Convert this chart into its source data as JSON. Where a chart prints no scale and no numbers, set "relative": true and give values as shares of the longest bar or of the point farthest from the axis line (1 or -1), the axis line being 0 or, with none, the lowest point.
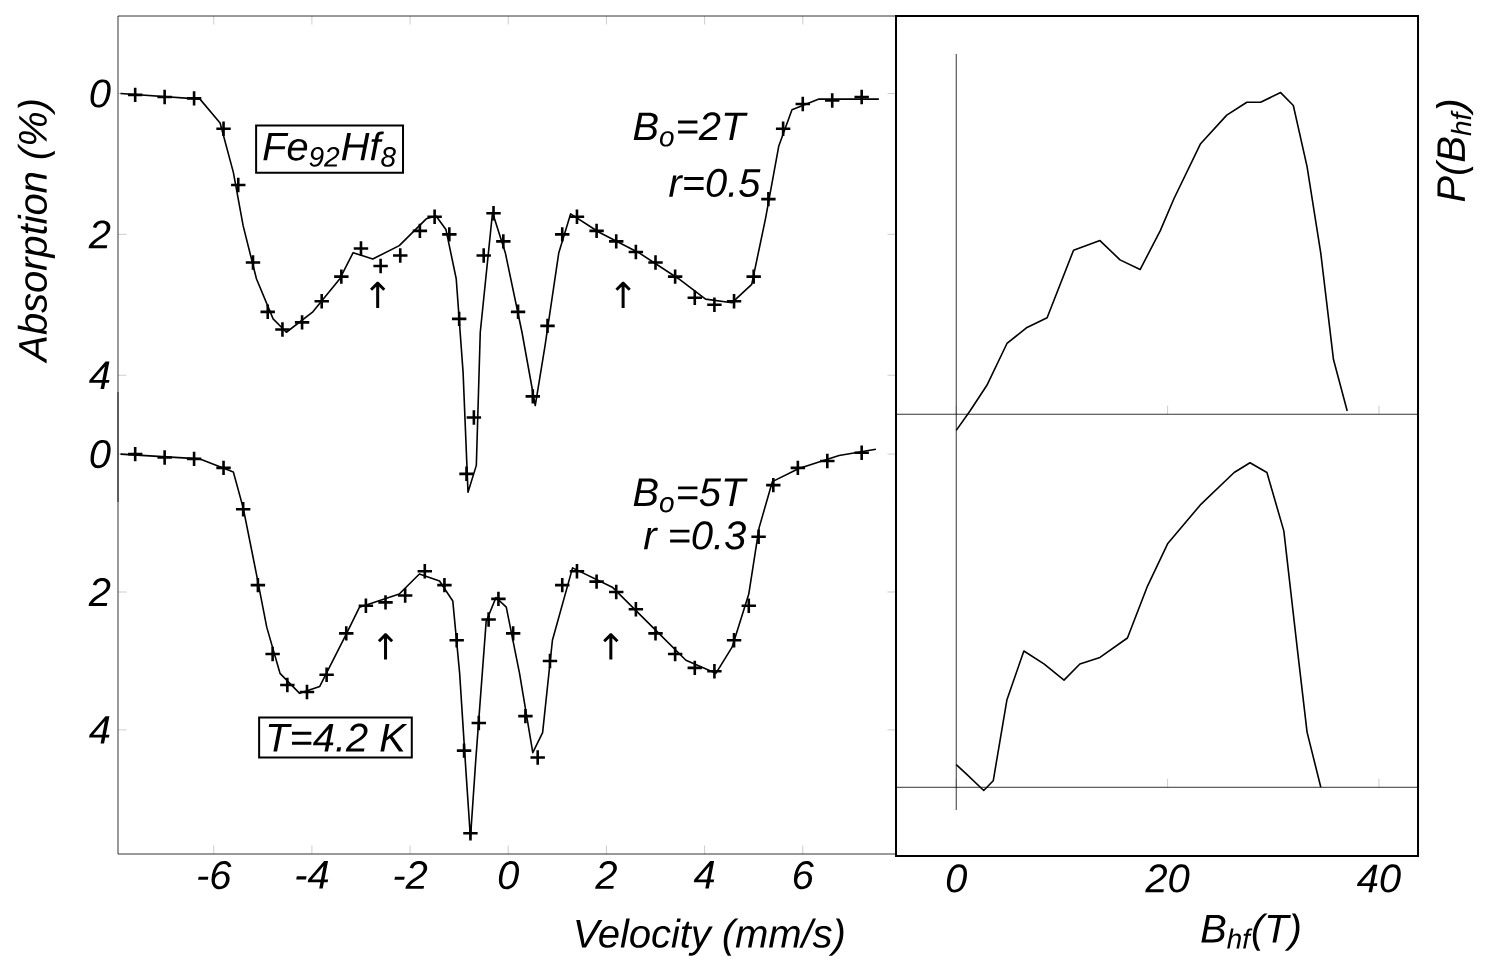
{
  "chart_data": [
    {
      "type": "line",
      "ylabel": "Absorption (%)",
      "xlim": [
        -7.95,
        7.9
      ],
      "xticks": [
        -6,
        -4,
        -2,
        0,
        2,
        4,
        6
      ],
      "ylim": [
        5.8,
        -1.1
      ],
      "yticks": [
        0,
        2,
        4
      ],
      "tick_labels": "y",
      "annotations": [
        "Fe$_{92}$Hf$_{8}$",
        "B$_{o}$=2T",
        "r=0.5",
        "↑",
        "↑"
      ],
      "series": [
        {
          "type": "scatter",
          "marker": "cross",
          "color": "#000000",
          "x": [
            -7.6,
            -7.0,
            -6.4,
            -5.8,
            -5.5,
            -5.2,
            -4.9,
            -4.6,
            -4.2,
            -3.8,
            -3.4,
            -3.0,
            -2.6,
            -2.2,
            -1.8,
            -1.5,
            -1.2,
            -1.0,
            -0.85,
            -0.7,
            -0.5,
            -0.3,
            -0.1,
            0.2,
            0.5,
            0.8,
            1.1,
            1.4,
            1.8,
            2.2,
            2.6,
            3.0,
            3.4,
            3.8,
            4.2,
            4.6,
            5.0,
            5.3,
            5.6,
            6.0,
            6.6,
            7.2
          ],
          "values": [
            0.02,
            0.05,
            0.07,
            0.5,
            1.3,
            2.4,
            3.1,
            3.35,
            3.25,
            2.95,
            2.6,
            2.2,
            2.45,
            2.3,
            1.95,
            1.75,
            2.0,
            3.2,
            5.4,
            4.6,
            2.3,
            1.7,
            2.1,
            3.1,
            4.3,
            3.3,
            2.0,
            1.75,
            1.95,
            2.1,
            2.25,
            2.4,
            2.6,
            2.9,
            3.0,
            2.95,
            2.6,
            1.5,
            0.5,
            0.15,
            0.1,
            0.05
          ]
        },
        {
          "type": "line",
          "color": "#000000",
          "x": [
            -7.9,
            -6.28,
            -5.87,
            -5.6,
            -5.4,
            -5.13,
            -4.79,
            -4.52,
            -3.98,
            -3.43,
            -3.16,
            -2.76,
            -2.22,
            -1.67,
            -1.47,
            -1.27,
            -1.06,
            -0.92,
            -0.82,
            -0.65,
            -0.57,
            -0.32,
            -0.06,
            0.28,
            0.55,
            0.75,
            1.03,
            1.27,
            1.85,
            2.66,
            3.47,
            4.02,
            4.56,
            4.96,
            5.24,
            5.51,
            5.78,
            6.33,
            7.55
          ],
          "values": [
            0,
            0.08,
            0.42,
            1.12,
            1.88,
            2.63,
            3.2,
            3.39,
            3.1,
            2.63,
            2.26,
            2.35,
            2.16,
            1.78,
            1.74,
            1.93,
            2.63,
            3.96,
            5.66,
            5.28,
            3.39,
            1.69,
            2.26,
            3.39,
            4.43,
            3.58,
            2.26,
            1.71,
            1.97,
            2.26,
            2.63,
            2.92,
            2.97,
            2.71,
            1.78,
            0.75,
            0.23,
            0.08,
            0.08
          ]
        }
      ]
    },
    {
      "type": "line",
      "xlabel": "Velocity (mm/s)",
      "xlim": [
        -7.95,
        7.9
      ],
      "xticks": [
        -6,
        -4,
        -2,
        0,
        2,
        4,
        6
      ],
      "ylim": [
        5.8,
        -0.9
      ],
      "yticks": [
        0,
        2,
        4
      ],
      "annotations": [
        "B$_{o}$=5T",
        "r =0.3",
        "T=4.2 K",
        "↑",
        "↑"
      ],
      "series": [
        {
          "type": "scatter",
          "marker": "cross",
          "color": "#000000",
          "x": [
            -7.6,
            -7.0,
            -6.4,
            -5.8,
            -5.4,
            -5.1,
            -4.8,
            -4.5,
            -4.1,
            -3.7,
            -3.3,
            -2.9,
            -2.5,
            -2.1,
            -1.7,
            -1.3,
            -1.05,
            -0.9,
            -0.77,
            -0.6,
            -0.4,
            -0.2,
            0.1,
            0.35,
            0.6,
            0.85,
            1.1,
            1.4,
            1.8,
            2.2,
            2.6,
            3.0,
            3.4,
            3.8,
            4.2,
            4.6,
            4.9,
            5.1,
            5.4,
            5.9,
            6.5,
            7.2
          ],
          "values": [
            0.0,
            0.05,
            0.07,
            0.2,
            0.8,
            1.9,
            2.9,
            3.35,
            3.45,
            3.2,
            2.6,
            2.2,
            2.15,
            2.05,
            1.7,
            1.9,
            2.7,
            4.3,
            5.5,
            3.9,
            2.4,
            2.1,
            2.6,
            3.8,
            4.4,
            3.0,
            1.9,
            1.7,
            1.85,
            2.0,
            2.25,
            2.6,
            2.9,
            3.1,
            3.15,
            2.7,
            2.2,
            1.2,
            0.45,
            0.2,
            0.1,
            -0.02
          ]
        },
        {
          "type": "line",
          "color": "#000000",
          "x": [
            -7.9,
            -6.28,
            -5.6,
            -5.4,
            -5.13,
            -4.92,
            -4.65,
            -4.25,
            -3.84,
            -3.3,
            -3.03,
            -2.22,
            -1.81,
            -1.4,
            -1.13,
            -0.99,
            -0.86,
            -0.77,
            -0.66,
            -0.45,
            -0.25,
            -0.04,
            0.23,
            0.5,
            0.7,
            0.9,
            1.31,
            2.12,
            2.94,
            3.62,
            4.23,
            4.56,
            4.9,
            5.11,
            5.38,
            5.92,
            6.74,
            7.49
          ],
          "values": [
            0,
            0.07,
            0.26,
            0.78,
            1.74,
            2.51,
            3.18,
            3.47,
            3.37,
            2.61,
            2.22,
            2.03,
            1.74,
            1.84,
            2.13,
            3.18,
            4.62,
            5.57,
            4.42,
            2.43,
            2.08,
            2.22,
            3.18,
            4.33,
            4.04,
            2.7,
            1.65,
            1.93,
            2.51,
            2.99,
            3.18,
            2.8,
            2.03,
            1.07,
            0.4,
            0.21,
            0.02,
            -0.07
          ]
        }
      ]
    },
    {
      "type": "line",
      "ylabel": "P(B$_{hf}$)",
      "relative": true,
      "xlim": [
        -5.7,
        43.7
      ],
      "xticks": [
        0,
        20,
        40
      ],
      "tick_labels": false,
      "series": [
        {
          "color": "#000000",
          "x": [
            0,
            1.3,
            2.9,
            4.8,
            6.7,
            8.6,
            11.1,
            13.6,
            15.5,
            17.4,
            19.3,
            20.6,
            23.1,
            25.6,
            27.5,
            28.8,
            30.7,
            31.9,
            33.2,
            34.5,
            35.7,
            37.0
          ],
          "values": [
            -0.05,
            0.01,
            0.09,
            0.22,
            0.27,
            0.3,
            0.51,
            0.54,
            0.48,
            0.45,
            0.57,
            0.67,
            0.84,
            0.93,
            0.97,
            0.97,
            1.0,
            0.96,
            0.77,
            0.5,
            0.17,
            0.01
          ]
        }
      ]
    },
    {
      "type": "line",
      "xlabel": "B$_{hf}$(T)",
      "relative": true,
      "xlim": [
        -5.7,
        43.7
      ],
      "xticks": [
        0,
        20,
        40
      ],
      "tick_labels": "x",
      "series": [
        {
          "color": "#000000",
          "x": [
            0,
            1.0,
            2.6,
            3.5,
            4.8,
            6.4,
            8.3,
            10.2,
            11.7,
            13.6,
            16.2,
            18.1,
            20.0,
            23.1,
            26.3,
            27.8,
            29.4,
            31.0,
            32.3,
            33.2,
            34.5
          ],
          "values": [
            0.07,
            0.04,
            -0.01,
            0.02,
            0.27,
            0.42,
            0.38,
            0.33,
            0.38,
            0.4,
            0.46,
            0.62,
            0.75,
            0.87,
            0.97,
            1.0,
            0.97,
            0.79,
            0.42,
            0.17,
            0.0
          ]
        }
      ]
    }
  ]
}
